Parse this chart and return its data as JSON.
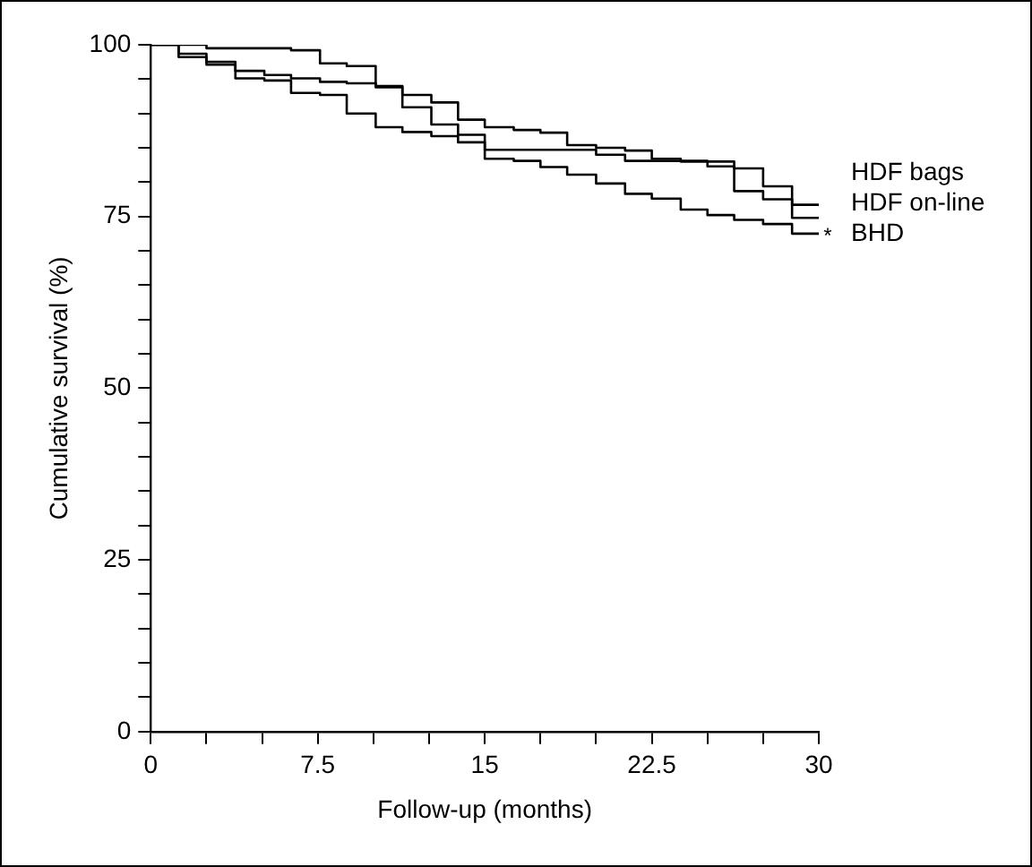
{
  "chart_data": {
    "type": "step",
    "xlabel": "Follow-up (months)",
    "ylabel": "Cumulative survival (%)",
    "xlim": [
      0,
      30
    ],
    "ylim": [
      0,
      100
    ],
    "xticks": [
      0,
      {
        "value": 2.5,
        "label": null
      },
      {
        "value": 5,
        "label": null
      },
      7.5,
      {
        "value": 10,
        "label": null
      },
      {
        "value": 12.5,
        "label": null
      },
      15,
      {
        "value": 17.5,
        "label": null
      },
      {
        "value": 20,
        "label": null
      },
      22.5,
      {
        "value": 25,
        "label": null
      },
      {
        "value": 27.5,
        "label": null
      },
      30
    ],
    "yticks": [
      0,
      {
        "value": 5,
        "label": null
      },
      {
        "value": 10,
        "label": null
      },
      {
        "value": 15,
        "label": null
      },
      {
        "value": 20,
        "label": null
      },
      25,
      {
        "value": 30,
        "label": null
      },
      {
        "value": 35,
        "label": null
      },
      {
        "value": 40,
        "label": null
      },
      {
        "value": 45,
        "label": null
      },
      50,
      {
        "value": 55,
        "label": null
      },
      {
        "value": 60,
        "label": null
      },
      {
        "value": 65,
        "label": null
      },
      {
        "value": 70,
        "label": null
      },
      75,
      {
        "value": 80,
        "label": null
      },
      {
        "value": 85,
        "label": null
      },
      {
        "value": 90,
        "label": null
      },
      {
        "value": 95,
        "label": null
      },
      100
    ],
    "grid": false,
    "legend": false,
    "annotations": [
      "*"
    ],
    "series": [
      {
        "name": "HDF bags",
        "color": "#000000",
        "x": [
          0,
          2.5,
          6.3,
          7.6,
          8.8,
          10.1,
          11.3,
          12.6,
          13.8,
          15.0,
          16.3,
          17.5,
          18.7,
          20.0,
          21.3,
          22.5,
          23.8,
          26.2,
          27.5,
          28.8,
          30
        ],
        "values": [
          100,
          99.5,
          99.2,
          97.3,
          96.9,
          94.0,
          92.7,
          91.6,
          89.1,
          88.0,
          87.6,
          87.2,
          85.4,
          85.0,
          84.6,
          83.4,
          83.0,
          82.0,
          79.4,
          76.7,
          76.7
        ]
      },
      {
        "name": "HDF on-line",
        "color": "#000000",
        "x": [
          0,
          1.25,
          2.5,
          3.8,
          5.1,
          6.3,
          7.6,
          8.8,
          10.1,
          11.3,
          12.6,
          13.8,
          15.0,
          20.0,
          21.3,
          25.0,
          26.2,
          27.5,
          28.8,
          30
        ],
        "values": [
          100,
          98.7,
          97.5,
          96.2,
          95.6,
          95.1,
          94.6,
          94.4,
          93.8,
          90.9,
          88.4,
          86.9,
          84.7,
          84.0,
          83.1,
          82.3,
          78.7,
          77.5,
          74.8,
          74.8
        ]
      },
      {
        "name": "BHD",
        "color": "#000000",
        "x": [
          0,
          1.25,
          2.5,
          3.8,
          5.1,
          6.3,
          7.6,
          8.8,
          10.1,
          11.3,
          12.6,
          13.8,
          15.0,
          16.3,
          17.5,
          18.7,
          20.0,
          21.3,
          22.5,
          23.8,
          25.0,
          26.2,
          27.5,
          28.8,
          30
        ],
        "values": [
          100,
          98.2,
          97.1,
          95.1,
          94.8,
          93.0,
          92.7,
          90.0,
          88.0,
          87.3,
          86.7,
          85.8,
          83.4,
          83.1,
          82.2,
          81.1,
          79.8,
          78.3,
          77.6,
          76.0,
          75.2,
          74.5,
          73.9,
          72.5,
          72.5
        ]
      }
    ]
  }
}
